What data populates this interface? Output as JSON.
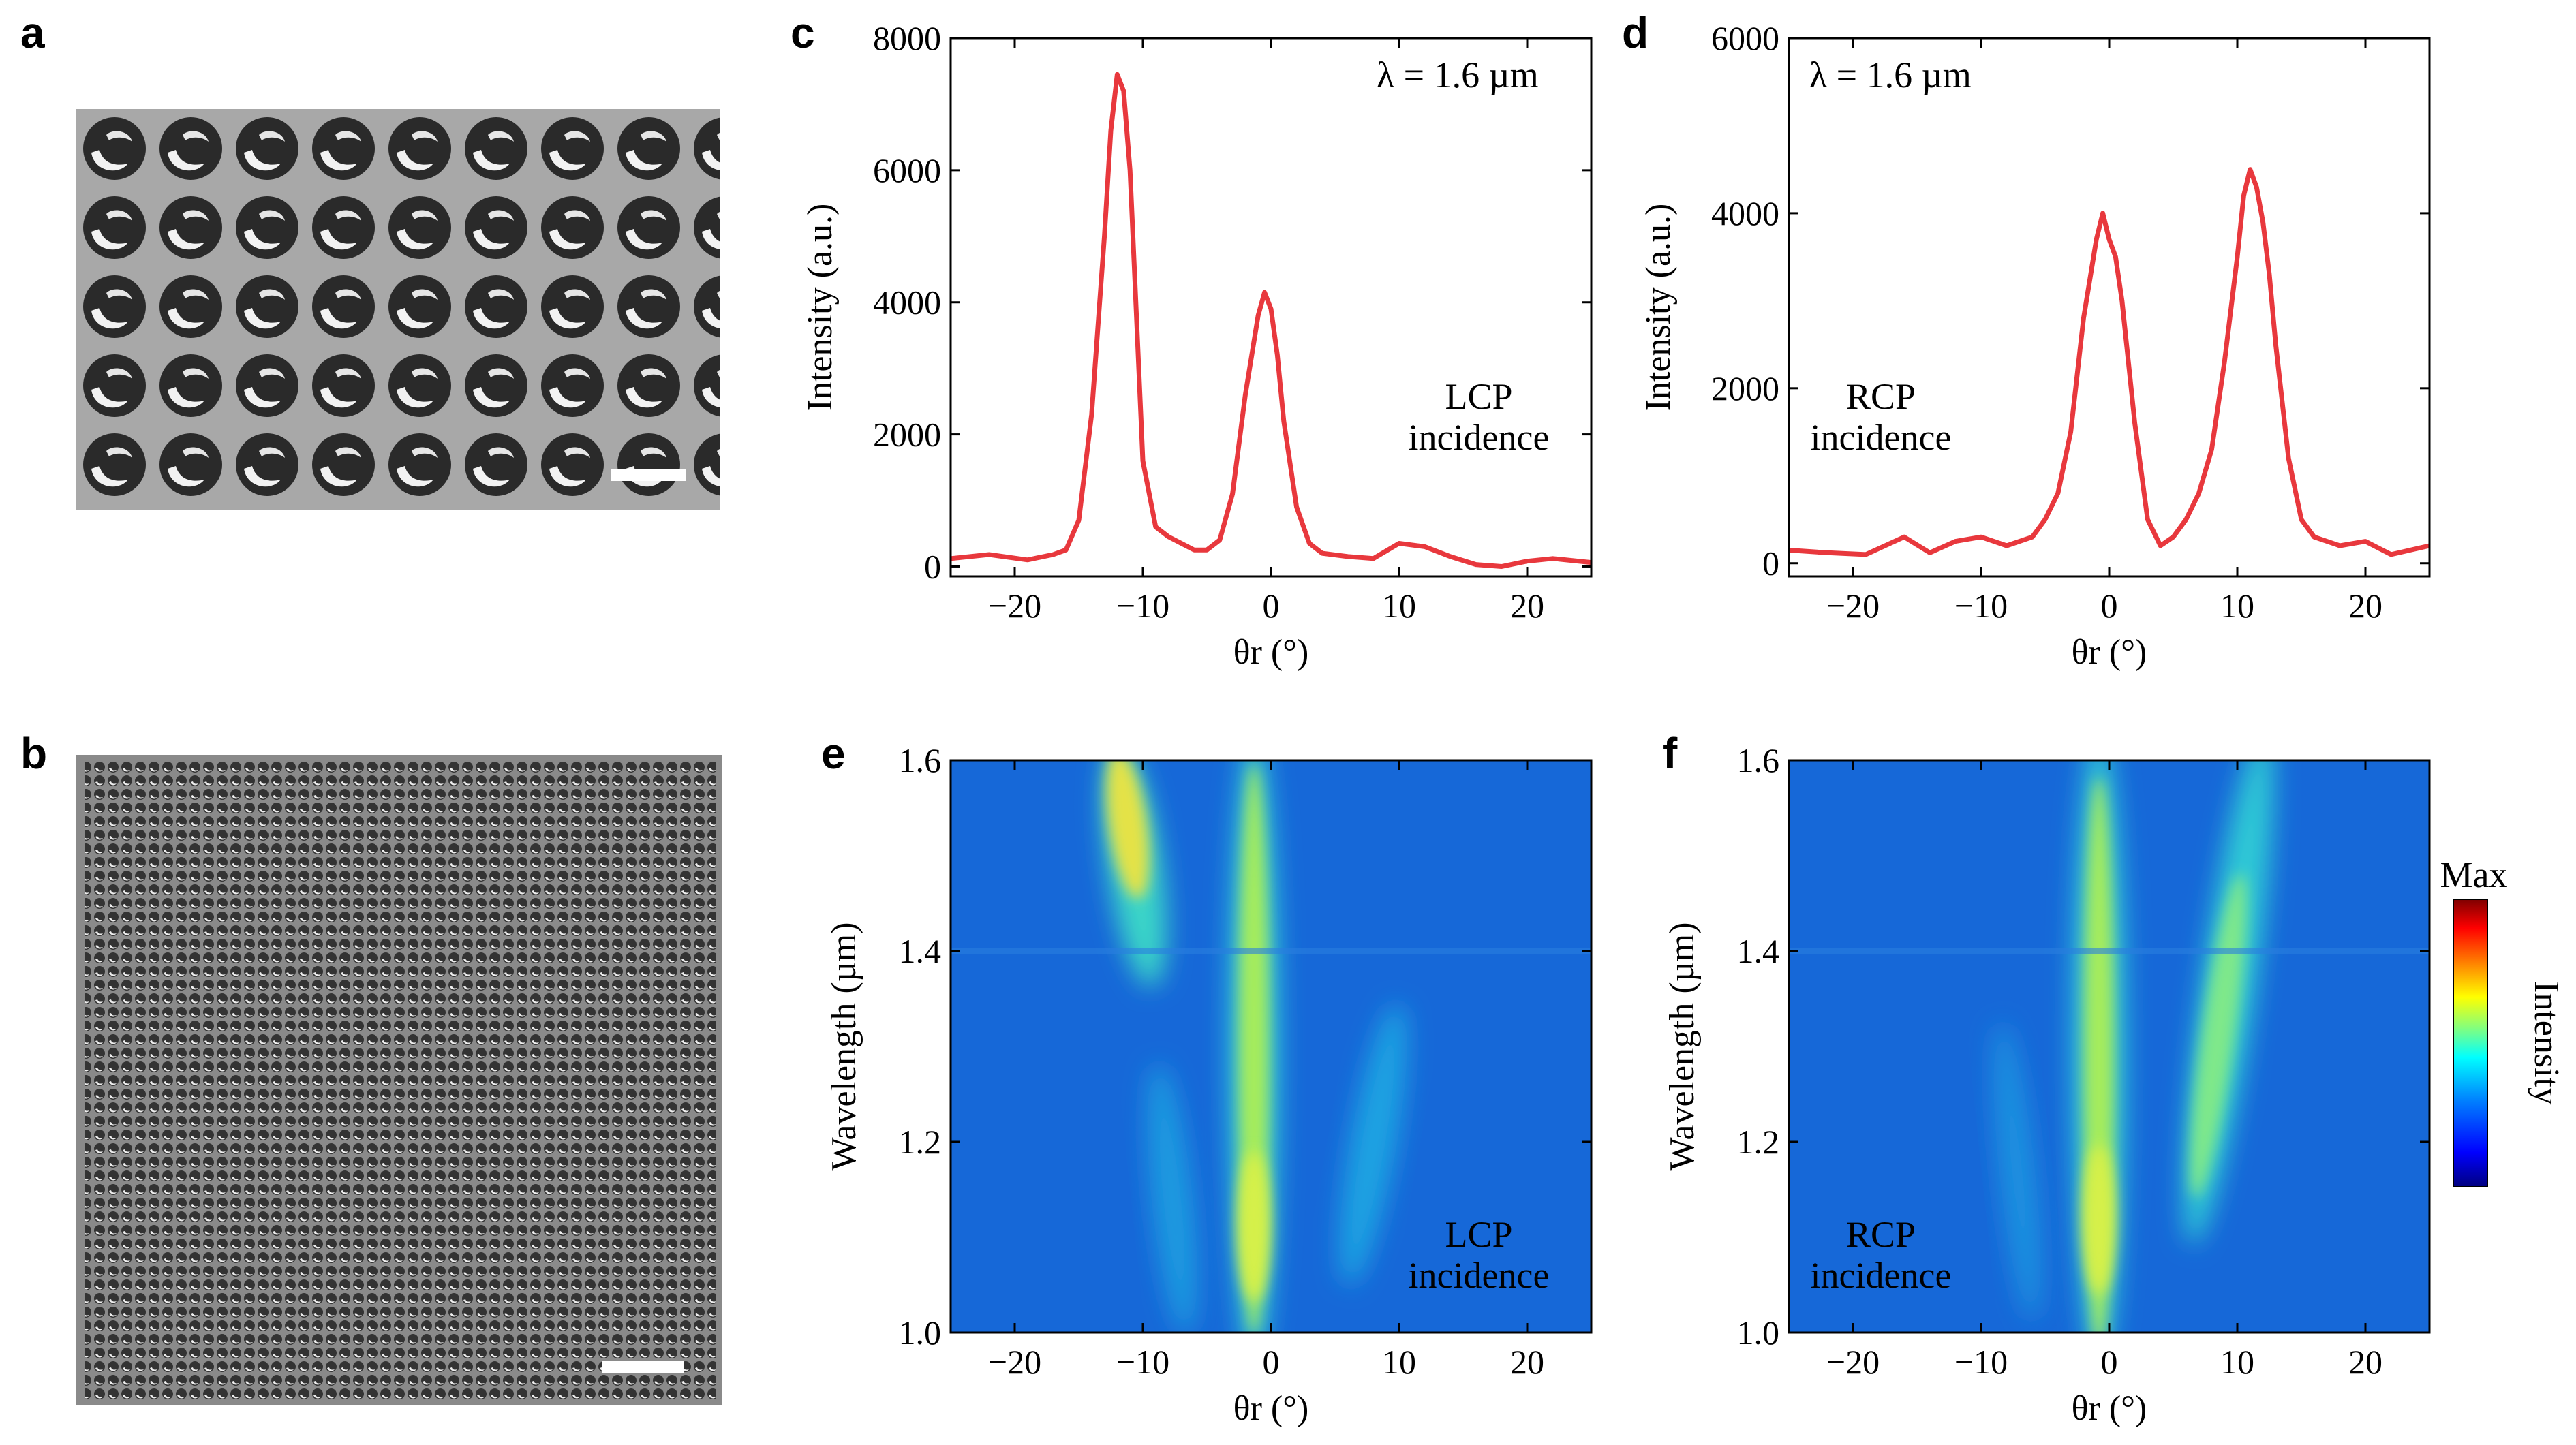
{
  "panels": {
    "a": {
      "letter": "a"
    },
    "b": {
      "letter": "b"
    },
    "c": {
      "letter": "c",
      "lambda_label": "λ = 1.6 µm",
      "incidence_line1": "LCP",
      "incidence_line2": "incidence"
    },
    "d": {
      "letter": "d",
      "lambda_label": "λ = 1.6 µm",
      "incidence_line1": "RCP",
      "incidence_line2": "incidence"
    },
    "e": {
      "letter": "e",
      "incidence_line1": "LCP",
      "incidence_line2": "incidence"
    },
    "f": {
      "letter": "f",
      "incidence_line1": "RCP",
      "incidence_line2": "incidence"
    }
  },
  "colorbar": {
    "max_label": "Max",
    "label": "Intensity",
    "colors": [
      "#00007f",
      "#0000ff",
      "#0080ff",
      "#00ffff",
      "#80ff80",
      "#ffff00",
      "#ff8000",
      "#ff0000",
      "#7f0000"
    ]
  },
  "colors": {
    "line": "#e8383d",
    "map_background": "#1668d8"
  },
  "chart_data": [
    {
      "id": "c",
      "type": "line",
      "xlabel": "θr (°)",
      "ylabel": "Intensity (a.u.)",
      "xlim": [
        -25,
        25
      ],
      "ylim": [
        -150,
        8000
      ],
      "xticks": [
        -20,
        -10,
        0,
        10,
        20
      ],
      "xtick_labels": [
        "−20",
        "−10",
        "0",
        "10",
        "20"
      ],
      "yticks": [
        0,
        2000,
        4000,
        6000,
        8000
      ],
      "ytick_labels": [
        "0",
        "2000",
        "4000",
        "6000",
        "8000"
      ],
      "series": [
        {
          "x": [
            -25,
            -22,
            -19,
            -17,
            -16,
            -15,
            -14,
            -13,
            -12.5,
            -12,
            -11.5,
            -11,
            -10.5,
            -10,
            -9,
            -8,
            -7,
            -6,
            -5,
            -4,
            -3,
            -2,
            -1,
            -0.5,
            0,
            0.5,
            1,
            2,
            3,
            4,
            6,
            8,
            10,
            12,
            14,
            16,
            18,
            20,
            22,
            25
          ],
          "y": [
            120,
            180,
            100,
            180,
            250,
            700,
            2300,
            5000,
            6600,
            7450,
            7200,
            6000,
            3800,
            1600,
            600,
            450,
            350,
            250,
            250,
            400,
            1100,
            2600,
            3800,
            4150,
            3900,
            3200,
            2200,
            900,
            350,
            200,
            150,
            120,
            350,
            300,
            150,
            30,
            0,
            80,
            120,
            60
          ]
        }
      ]
    },
    {
      "id": "d",
      "type": "line",
      "xlabel": "θr (°)",
      "ylabel": "Intensity (a.u.)",
      "xlim": [
        -25,
        25
      ],
      "ylim": [
        -150,
        6000
      ],
      "xticks": [
        -20,
        -10,
        0,
        10,
        20
      ],
      "xtick_labels": [
        "−20",
        "−10",
        "0",
        "10",
        "20"
      ],
      "yticks": [
        0,
        2000,
        4000,
        6000
      ],
      "ytick_labels": [
        "0",
        "2000",
        "4000",
        "6000"
      ],
      "series": [
        {
          "x": [
            -25,
            -22,
            -19,
            -16,
            -14,
            -12,
            -10,
            -8,
            -6,
            -5,
            -4,
            -3,
            -2,
            -1,
            -0.5,
            0,
            0.5,
            1,
            2,
            3,
            4,
            5,
            6,
            7,
            8,
            9,
            10,
            10.5,
            11,
            11.5,
            12,
            12.5,
            13,
            14,
            15,
            16,
            18,
            20,
            22,
            25
          ],
          "y": [
            150,
            120,
            100,
            300,
            120,
            250,
            300,
            200,
            300,
            500,
            800,
            1500,
            2800,
            3700,
            4000,
            3700,
            3500,
            3000,
            1600,
            500,
            200,
            300,
            500,
            800,
            1300,
            2300,
            3500,
            4200,
            4500,
            4300,
            3900,
            3300,
            2500,
            1200,
            500,
            300,
            200,
            250,
            100,
            200
          ]
        }
      ]
    },
    {
      "id": "e",
      "type": "heatmap",
      "xlabel": "θr (°)",
      "ylabel": "Wavelength (µm)",
      "xlim": [
        -25,
        25
      ],
      "ylim": [
        1.0,
        1.6
      ],
      "xticks": [
        -20,
        -10,
        0,
        10,
        20
      ],
      "xtick_labels": [
        "−20",
        "−10",
        "0",
        "10",
        "20"
      ],
      "yticks": [
        1.0,
        1.2,
        1.4,
        1.6
      ],
      "ytick_labels": [
        "1.0",
        "1.2",
        "1.4",
        "1.6"
      ]
    },
    {
      "id": "f",
      "type": "heatmap",
      "xlabel": "θr (°)",
      "ylabel": "Wavelength (µm)",
      "xlim": [
        -25,
        25
      ],
      "ylim": [
        1.0,
        1.6
      ],
      "xticks": [
        -20,
        -10,
        0,
        10,
        20
      ],
      "xtick_labels": [
        "−20",
        "−10",
        "0",
        "10",
        "20"
      ],
      "yticks": [
        1.0,
        1.2,
        1.4,
        1.6
      ],
      "ytick_labels": [
        "1.0",
        "1.2",
        "1.4",
        "1.6"
      ]
    }
  ]
}
